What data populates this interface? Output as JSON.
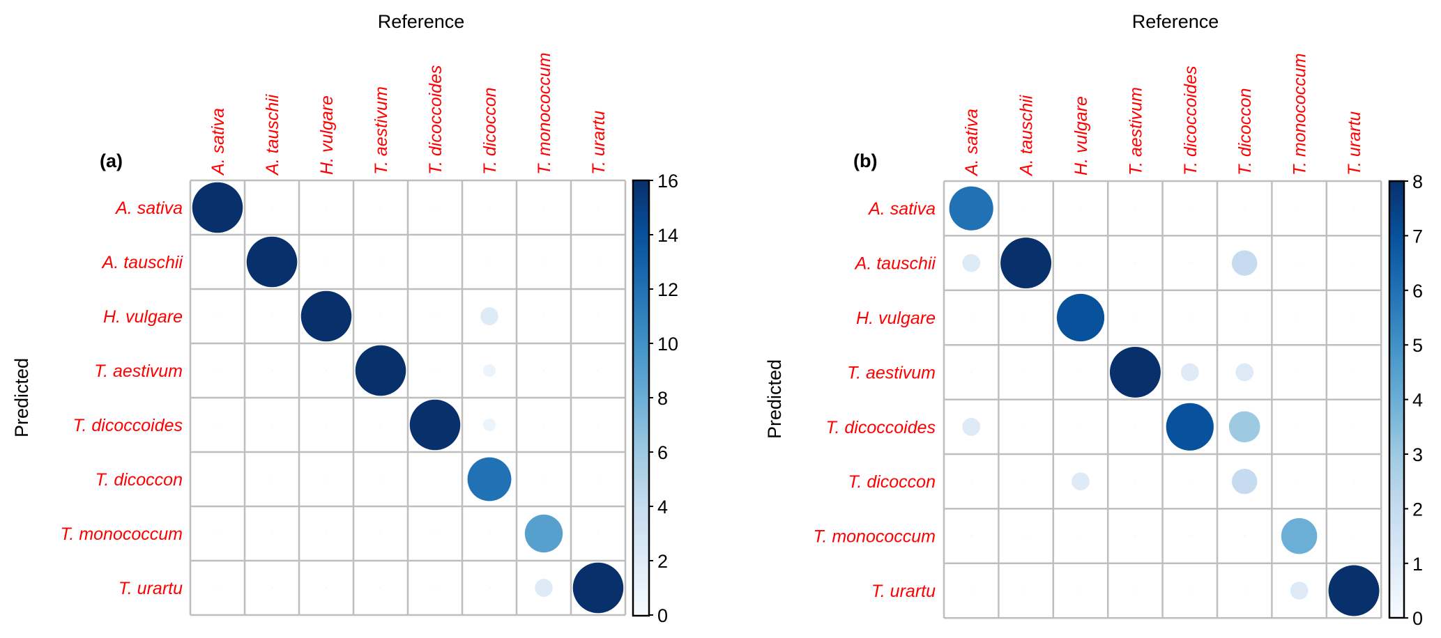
{
  "chart_data": [
    {
      "type": "heatmap",
      "panel_label": "(a)",
      "xlabel": "Reference",
      "ylabel": "Predicted",
      "categories": [
        "A. sativa",
        "A. tauschii",
        "H. vulgare",
        "T. aestivum",
        "T. dicoccoides",
        "T. dicoccon",
        "T. monococcum",
        "T. urartu"
      ],
      "matrix": [
        [
          16,
          0,
          0,
          0,
          0,
          0,
          0,
          0
        ],
        [
          0,
          16,
          0,
          0,
          0,
          0,
          0,
          0
        ],
        [
          0,
          0,
          16,
          0,
          0,
          2,
          0,
          0
        ],
        [
          0,
          0,
          0,
          16,
          0,
          1,
          0,
          0
        ],
        [
          0,
          0,
          0,
          0,
          16,
          1,
          0,
          0
        ],
        [
          0,
          0,
          0,
          0,
          0,
          12,
          0,
          0
        ],
        [
          0,
          0,
          0,
          0,
          0,
          0,
          9,
          0
        ],
        [
          0,
          0,
          0,
          0,
          0,
          0,
          2,
          16
        ]
      ],
      "colorbar": {
        "range": [
          0,
          16
        ],
        "ticks": [
          0,
          2,
          4,
          6,
          8,
          10,
          12,
          14,
          16
        ]
      },
      "marker": "circle"
    },
    {
      "type": "heatmap",
      "panel_label": "(b)",
      "xlabel": "Reference",
      "ylabel": "Predicted",
      "categories": [
        "A. sativa",
        "A. tauschii",
        "H. vulgare",
        "T. aestivum",
        "T. dicoccoides",
        "T. dicoccon",
        "T. monococcum",
        "T. urartu"
      ],
      "matrix": [
        [
          6,
          0,
          0,
          0,
          0,
          0,
          0,
          0
        ],
        [
          1,
          8,
          0,
          0,
          0,
          2,
          0,
          0
        ],
        [
          0,
          0,
          7,
          0,
          0,
          0,
          0,
          0
        ],
        [
          0,
          0,
          0,
          8,
          1,
          1,
          0,
          0
        ],
        [
          1,
          0,
          0,
          0,
          7,
          3,
          0,
          0
        ],
        [
          0,
          0,
          1,
          0,
          0,
          2,
          0,
          0
        ],
        [
          0,
          0,
          0,
          0,
          0,
          0,
          4,
          0
        ],
        [
          0,
          0,
          0,
          0,
          0,
          0,
          1,
          8
        ]
      ],
      "colorbar": {
        "range": [
          0,
          8
        ],
        "ticks": [
          0,
          1,
          2,
          3,
          4,
          5,
          6,
          7,
          8
        ]
      },
      "marker": "circle"
    }
  ],
  "colors": {
    "label": "#ff0000",
    "grid": "#bebebe",
    "scale": [
      "#f7fbff",
      "#deebf7",
      "#c6dbef",
      "#9ecae1",
      "#6baed6",
      "#4292c6",
      "#2171b5",
      "#08519c",
      "#08306b"
    ]
  }
}
